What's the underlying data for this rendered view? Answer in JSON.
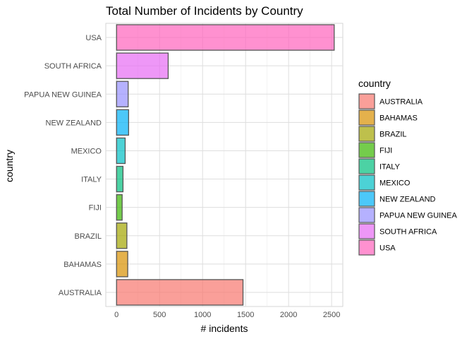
{
  "chart_data": {
    "type": "bar",
    "orientation": "horizontal",
    "title": "Total Number of Incidents by Country",
    "xlabel": "# incidents",
    "ylabel": "country",
    "xlim": [
      -125,
      2630
    ],
    "xticks": [
      0,
      500,
      1000,
      1500,
      2000,
      2500
    ],
    "grid": true,
    "legend": {
      "title": "country",
      "placement": "right",
      "entries": [
        "AUSTRALIA",
        "BAHAMAS",
        "BRAZIL",
        "FIJI",
        "ITALY",
        "MEXICO",
        "NEW ZEALAND",
        "PAPUA NEW GUINEA",
        "SOUTH AFRICA",
        "USA"
      ]
    },
    "categories": [
      "AUSTRALIA",
      "BAHAMAS",
      "BRAZIL",
      "FIJI",
      "ITALY",
      "MEXICO",
      "NEW ZEALAND",
      "PAPUA NEW GUINEA",
      "SOUTH AFRICA",
      "USA"
    ],
    "values": [
      1470,
      130,
      120,
      65,
      75,
      100,
      140,
      135,
      600,
      2530
    ],
    "colors": [
      "#F8766D",
      "#D89000",
      "#A3A500",
      "#39B600",
      "#00BF7D",
      "#00BFC4",
      "#00B0F6",
      "#9590FF",
      "#E76BF3",
      "#FF62BC"
    ]
  }
}
